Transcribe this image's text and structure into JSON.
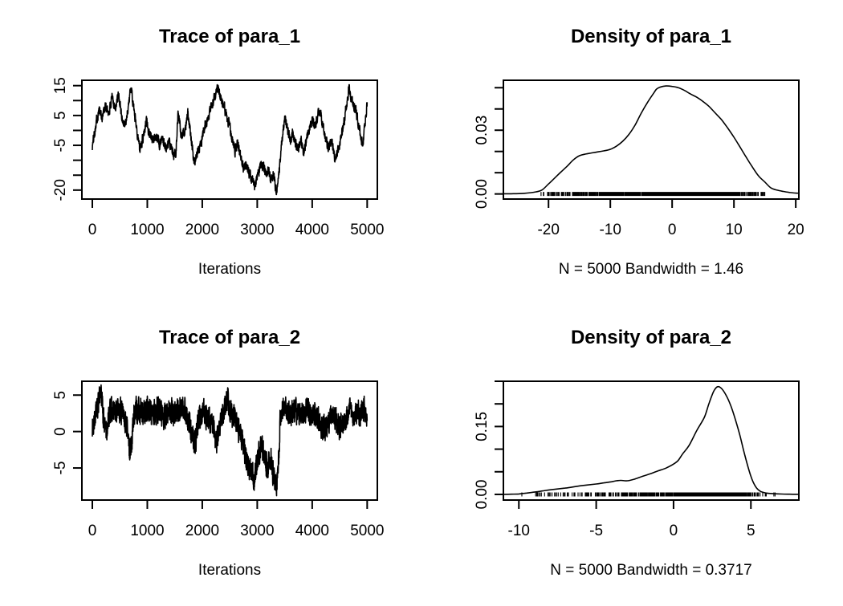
{
  "figure": {
    "background": "#ffffff",
    "foreground": "#000000",
    "description": "R coda MCMC diagnostics: trace and density plots for two parameters"
  },
  "chart_data": [
    {
      "id": "trace_para_1",
      "type": "line",
      "kind": "trace",
      "title": "Trace of para_1",
      "xlabel": "Iterations",
      "xlim": [
        -190,
        5185
      ],
      "ylim": [
        -23,
        16.8
      ],
      "xticks": [
        {
          "v": 0,
          "label": "0"
        },
        {
          "v": 1000,
          "label": "1000"
        },
        {
          "v": 2000,
          "label": "2000"
        },
        {
          "v": 3000,
          "label": "3000"
        },
        {
          "v": 4000,
          "label": "4000"
        },
        {
          "v": 5000,
          "label": "5000"
        }
      ],
      "yticks": [
        {
          "v": 15,
          "label": "15"
        },
        {
          "v": 10,
          "label": ""
        },
        {
          "v": 5,
          "label": "5"
        },
        {
          "v": 0,
          "label": ""
        },
        {
          "v": -5,
          "label": "-5"
        },
        {
          "v": -10,
          "label": ""
        },
        {
          "v": -15,
          "label": ""
        },
        {
          "v": -20,
          "label": "-20"
        }
      ],
      "trend": [
        [
          0,
          -5.5
        ],
        [
          60,
          2
        ],
        [
          120,
          7
        ],
        [
          180,
          4.5
        ],
        [
          240,
          8
        ],
        [
          300,
          6
        ],
        [
          360,
          10.5
        ],
        [
          420,
          8
        ],
        [
          480,
          11.5
        ],
        [
          540,
          4
        ],
        [
          600,
          1.5
        ],
        [
          660,
          9
        ],
        [
          700,
          14
        ],
        [
          740,
          9
        ],
        [
          800,
          2
        ],
        [
          860,
          -6
        ],
        [
          920,
          -2.5
        ],
        [
          980,
          3.5
        ],
        [
          1040,
          -1
        ],
        [
          1100,
          -3.5
        ],
        [
          1160,
          -1
        ],
        [
          1220,
          -4.5
        ],
        [
          1280,
          -2.5
        ],
        [
          1340,
          -5.5
        ],
        [
          1400,
          -4
        ],
        [
          1460,
          -7.5
        ],
        [
          1520,
          -8
        ],
        [
          1560,
          5.5
        ],
        [
          1620,
          -2
        ],
        [
          1680,
          -0.5
        ],
        [
          1740,
          6
        ],
        [
          1790,
          -2
        ],
        [
          1860,
          -11.5
        ],
        [
          1920,
          -7
        ],
        [
          1980,
          -4.5
        ],
        [
          2040,
          1
        ],
        [
          2100,
          4
        ],
        [
          2160,
          7.5
        ],
        [
          2220,
          11
        ],
        [
          2270,
          15
        ],
        [
          2330,
          11
        ],
        [
          2400,
          7.5
        ],
        [
          2450,
          4
        ],
        [
          2500,
          1
        ],
        [
          2550,
          -3
        ],
        [
          2600,
          -7
        ],
        [
          2650,
          -4
        ],
        [
          2700,
          -9
        ],
        [
          2750,
          -12.5
        ],
        [
          2800,
          -10.5
        ],
        [
          2850,
          -14
        ],
        [
          2900,
          -16.5
        ],
        [
          2950,
          -19
        ],
        [
          3000,
          -16
        ],
        [
          3050,
          -12.5
        ],
        [
          3100,
          -11.5
        ],
        [
          3150,
          -14.5
        ],
        [
          3200,
          -13
        ],
        [
          3250,
          -16.5
        ],
        [
          3300,
          -15
        ],
        [
          3350,
          -21
        ],
        [
          3400,
          -13
        ],
        [
          3440,
          -5
        ],
        [
          3500,
          4.5
        ],
        [
          3550,
          0.5
        ],
        [
          3600,
          -3
        ],
        [
          3650,
          -1
        ],
        [
          3700,
          -4.5
        ],
        [
          3750,
          -6.5
        ],
        [
          3800,
          -4
        ],
        [
          3850,
          -7.5
        ],
        [
          3900,
          -3
        ],
        [
          3950,
          0.5
        ],
        [
          4000,
          3.5
        ],
        [
          4050,
          1.5
        ],
        [
          4100,
          5
        ],
        [
          4150,
          6
        ],
        [
          4200,
          1
        ],
        [
          4250,
          -3.5
        ],
        [
          4300,
          -5.5
        ],
        [
          4350,
          -4
        ],
        [
          4420,
          -9.5
        ],
        [
          4480,
          -6
        ],
        [
          4520,
          -2.5
        ],
        [
          4570,
          2
        ],
        [
          4620,
          8
        ],
        [
          4670,
          14.5
        ],
        [
          4720,
          10
        ],
        [
          4770,
          7.5
        ],
        [
          4820,
          4.5
        ],
        [
          4870,
          -1
        ],
        [
          4920,
          -4.5
        ],
        [
          4960,
          2
        ],
        [
          5000,
          9.5
        ]
      ],
      "noise": {
        "seed": 101,
        "phi": 0.5,
        "amp": 1.5,
        "n": 2000,
        "clip": [
          -21.5,
          15.3
        ]
      }
    },
    {
      "id": "density_para_1",
      "type": "line",
      "kind": "density",
      "title": "Density of para_1",
      "xlabel": "N = 5000   Bandwidth = 1.46",
      "n": 5000,
      "bandwidth": 1.46,
      "xlim": [
        -27.3,
        20.5
      ],
      "ylim": [
        -0.0024,
        0.0535
      ],
      "xticks": [
        {
          "v": -20,
          "label": "-20"
        },
        {
          "v": -10,
          "label": "-10"
        },
        {
          "v": 0,
          "label": "0"
        },
        {
          "v": 10,
          "label": "10"
        },
        {
          "v": 20,
          "label": "20"
        }
      ],
      "yticks": [
        {
          "v": 0,
          "label": "0.00"
        },
        {
          "v": 0.01,
          "label": ""
        },
        {
          "v": 0.02,
          "label": ""
        },
        {
          "v": 0.03,
          "label": "0.03"
        },
        {
          "v": 0.04,
          "label": ""
        },
        {
          "v": 0.05,
          "label": ""
        }
      ],
      "curve": [
        [
          -26,
          0.0001
        ],
        [
          -24,
          0.0003
        ],
        [
          -22,
          0.001
        ],
        [
          -21,
          0.002
        ],
        [
          -20,
          0.0047
        ],
        [
          -19,
          0.0075
        ],
        [
          -18,
          0.0103
        ],
        [
          -17,
          0.013
        ],
        [
          -16,
          0.016
        ],
        [
          -15,
          0.018
        ],
        [
          -14,
          0.0188
        ],
        [
          -13,
          0.0193
        ],
        [
          -12,
          0.0198
        ],
        [
          -11,
          0.0203
        ],
        [
          -10,
          0.021
        ],
        [
          -9,
          0.0225
        ],
        [
          -8,
          0.0248
        ],
        [
          -7,
          0.028
        ],
        [
          -6,
          0.0324
        ],
        [
          -5,
          0.038
        ],
        [
          -4,
          0.043
        ],
        [
          -3,
          0.0474
        ],
        [
          -2.5,
          0.0494
        ],
        [
          -2,
          0.0502
        ],
        [
          -1,
          0.0508
        ],
        [
          0,
          0.0506
        ],
        [
          1,
          0.05
        ],
        [
          2,
          0.0487
        ],
        [
          3,
          0.047
        ],
        [
          4,
          0.0455
        ],
        [
          5,
          0.0435
        ],
        [
          6,
          0.0411
        ],
        [
          7,
          0.038
        ],
        [
          8,
          0.0349
        ],
        [
          9,
          0.031
        ],
        [
          10,
          0.0267
        ],
        [
          11,
          0.022
        ],
        [
          12,
          0.0172
        ],
        [
          13,
          0.0126
        ],
        [
          14,
          0.0084
        ],
        [
          15,
          0.0056
        ],
        [
          16,
          0.0028
        ],
        [
          17,
          0.0018
        ],
        [
          18,
          0.0012
        ],
        [
          19,
          0.0007
        ],
        [
          20,
          0.0004
        ]
      ],
      "rug": {
        "seed": 303,
        "n": 950,
        "extent": [
          -21.3,
          15.1
        ]
      }
    },
    {
      "id": "trace_para_2",
      "type": "line",
      "kind": "trace",
      "title": "Trace of para_2",
      "xlabel": "Iterations",
      "xlim": [
        -190,
        5185
      ],
      "ylim": [
        -9.4,
        6.9
      ],
      "xticks": [
        {
          "v": 0,
          "label": "0"
        },
        {
          "v": 1000,
          "label": "1000"
        },
        {
          "v": 2000,
          "label": "2000"
        },
        {
          "v": 3000,
          "label": "3000"
        },
        {
          "v": 4000,
          "label": "4000"
        },
        {
          "v": 5000,
          "label": "5000"
        }
      ],
      "yticks": [
        {
          "v": 5,
          "label": "5"
        },
        {
          "v": 0,
          "label": "0"
        },
        {
          "v": -5,
          "label": "-5"
        }
      ],
      "trend": [
        [
          0,
          0.5
        ],
        [
          80,
          3
        ],
        [
          120,
          4
        ],
        [
          160,
          5
        ],
        [
          200,
          2
        ],
        [
          260,
          0.5
        ],
        [
          320,
          2.5
        ],
        [
          400,
          3
        ],
        [
          480,
          2.5
        ],
        [
          560,
          3
        ],
        [
          620,
          1
        ],
        [
          680,
          -2.5
        ],
        [
          720,
          -1
        ],
        [
          760,
          2.5
        ],
        [
          840,
          3
        ],
        [
          920,
          2.5
        ],
        [
          1000,
          3
        ],
        [
          1100,
          2.5
        ],
        [
          1200,
          3
        ],
        [
          1300,
          2.2
        ],
        [
          1400,
          3
        ],
        [
          1500,
          2.5
        ],
        [
          1600,
          3.2
        ],
        [
          1700,
          2.5
        ],
        [
          1800,
          0
        ],
        [
          1870,
          -1.5
        ],
        [
          1940,
          2
        ],
        [
          2000,
          2.5
        ],
        [
          2100,
          2
        ],
        [
          2200,
          0.5
        ],
        [
          2260,
          -1.5
        ],
        [
          2320,
          1
        ],
        [
          2400,
          3.5
        ],
        [
          2460,
          4.2
        ],
        [
          2520,
          3
        ],
        [
          2600,
          1.5
        ],
        [
          2680,
          0
        ],
        [
          2750,
          -2
        ],
        [
          2820,
          -4
        ],
        [
          2880,
          -5.5
        ],
        [
          2940,
          -6.8
        ],
        [
          2980,
          -5
        ],
        [
          3020,
          -3.5
        ],
        [
          3060,
          -1.5
        ],
        [
          3100,
          -2.5
        ],
        [
          3150,
          -4
        ],
        [
          3200,
          -5
        ],
        [
          3250,
          -4
        ],
        [
          3300,
          -6
        ],
        [
          3350,
          -8
        ],
        [
          3390,
          -4
        ],
        [
          3420,
          2
        ],
        [
          3460,
          3.5
        ],
        [
          3520,
          3
        ],
        [
          3600,
          2.5
        ],
        [
          3700,
          3
        ],
        [
          3800,
          2.5
        ],
        [
          3900,
          3.2
        ],
        [
          4000,
          2.5
        ],
        [
          4080,
          2
        ],
        [
          4160,
          1
        ],
        [
          4240,
          0.5
        ],
        [
          4320,
          2
        ],
        [
          4400,
          2.5
        ],
        [
          4480,
          0.5
        ],
        [
          4560,
          1
        ],
        [
          4640,
          2.5
        ],
        [
          4700,
          3.5
        ],
        [
          4760,
          2
        ],
        [
          4820,
          3
        ],
        [
          4880,
          2.5
        ],
        [
          4940,
          3.2
        ],
        [
          5000,
          2.5
        ]
      ],
      "noise": {
        "seed": 202,
        "phi": 0.3,
        "amp": 1.6,
        "n": 2200,
        "clip": [
          -8.8,
          6.4
        ]
      }
    },
    {
      "id": "density_para_2",
      "type": "line",
      "kind": "density",
      "title": "Density of para_2",
      "xlabel": "N = 5000   Bandwidth = 0.3717",
      "n": 5000,
      "bandwidth": 0.3717,
      "xlim": [
        -11.0,
        8.1
      ],
      "ylim": [
        -0.0125,
        0.25
      ],
      "xticks": [
        {
          "v": -10,
          "label": "-10"
        },
        {
          "v": -5,
          "label": "-5"
        },
        {
          "v": 0,
          "label": "0"
        },
        {
          "v": 5,
          "label": "5"
        }
      ],
      "yticks": [
        {
          "v": 0,
          "label": "0.00"
        },
        {
          "v": 0.05,
          "label": ""
        },
        {
          "v": 0.1,
          "label": ""
        },
        {
          "v": 0.15,
          "label": "0.15"
        },
        {
          "v": 0.2,
          "label": ""
        },
        {
          "v": 0.25,
          "label": ""
        }
      ],
      "curve": [
        [
          -11,
          0.0001
        ],
        [
          -10.5,
          0.0004
        ],
        [
          -10,
          0.001
        ],
        [
          -9.5,
          0.003
        ],
        [
          -9,
          0.005
        ],
        [
          -8.5,
          0.0075
        ],
        [
          -8,
          0.01
        ],
        [
          -7,
          0.014
        ],
        [
          -6,
          0.019
        ],
        [
          -5,
          0.023
        ],
        [
          -4.5,
          0.0255
        ],
        [
          -4,
          0.028
        ],
        [
          -3.7,
          0.03
        ],
        [
          -3.4,
          0.031
        ],
        [
          -3,
          0.03
        ],
        [
          -2.5,
          0.034
        ],
        [
          -2,
          0.04
        ],
        [
          -1.5,
          0.0455
        ],
        [
          -1,
          0.052
        ],
        [
          -0.5,
          0.058
        ],
        [
          0,
          0.067
        ],
        [
          0.3,
          0.075
        ],
        [
          0.6,
          0.09
        ],
        [
          1,
          0.108
        ],
        [
          1.5,
          0.141
        ],
        [
          2,
          0.171
        ],
        [
          2.3,
          0.202
        ],
        [
          2.6,
          0.228
        ],
        [
          2.85,
          0.238
        ],
        [
          3.1,
          0.234
        ],
        [
          3.4,
          0.219
        ],
        [
          3.7,
          0.196
        ],
        [
          4,
          0.165
        ],
        [
          4.3,
          0.129
        ],
        [
          4.6,
          0.0875
        ],
        [
          5,
          0.04
        ],
        [
          5.3,
          0.0173
        ],
        [
          5.6,
          0.0071
        ],
        [
          6,
          0.003
        ],
        [
          6.5,
          0.0015
        ],
        [
          7,
          0.0008
        ],
        [
          7.5,
          0.0004
        ],
        [
          8,
          0.0002
        ]
      ],
      "rug": {
        "seed": 404,
        "n": 950,
        "extent": [
          -10.3,
          6.9
        ]
      }
    }
  ]
}
